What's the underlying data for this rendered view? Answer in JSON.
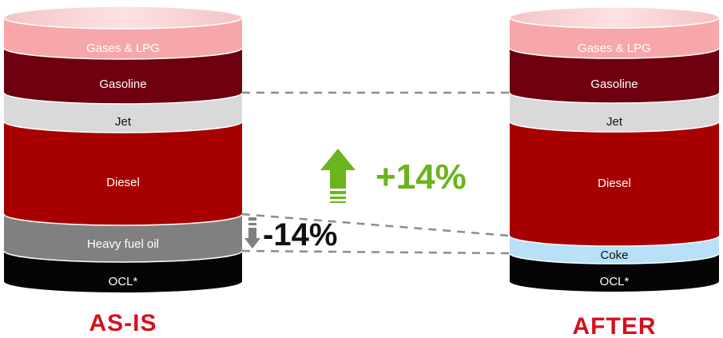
{
  "left_drum": {
    "caption": "AS-IS",
    "segments": [
      {
        "label": "Gases & LPG",
        "color": "#f7a7a9",
        "text": "pink"
      },
      {
        "label": "Gasoline",
        "color": "#6e0010",
        "text": "light"
      },
      {
        "label": "Jet",
        "color": "#d9d9d9",
        "text": "dark"
      },
      {
        "label": "Diesel",
        "color": "#a80000",
        "text": "light"
      },
      {
        "label": "Heavy fuel oil",
        "color": "#808080",
        "text": "light"
      },
      {
        "label": "OCL*",
        "color": "#050505",
        "text": "light"
      }
    ]
  },
  "right_drum": {
    "caption": "AFTER",
    "segments": [
      {
        "label": "Gases & LPG",
        "color": "#f7a7a9",
        "text": "pink"
      },
      {
        "label": "Gasoline",
        "color": "#6e0010",
        "text": "light"
      },
      {
        "label": "Jet",
        "color": "#d9d9d9",
        "text": "dark"
      },
      {
        "label": "Diesel",
        "color": "#a80000",
        "text": "light"
      },
      {
        "label": "Coke",
        "color": "#b8e0f8",
        "text": "dark"
      },
      {
        "label": "OCL*",
        "color": "#050505",
        "text": "light"
      }
    ]
  },
  "increase": {
    "text": "+14%",
    "color": "#6ab41e",
    "icon": "arrow-up-icon"
  },
  "decrease": {
    "text": "-14%",
    "color": "#808080",
    "icon": "arrow-down-icon"
  }
}
